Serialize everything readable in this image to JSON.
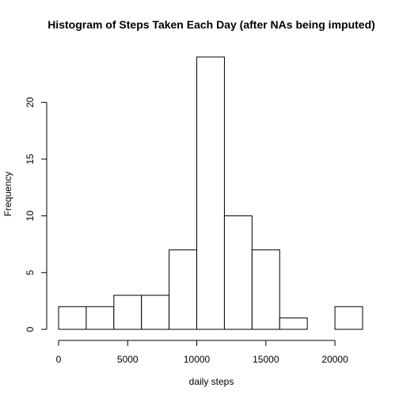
{
  "chart_data": {
    "type": "bar",
    "title": "Histogram of Steps Taken Each Day (after NAs being imputed)",
    "xlabel": "daily steps",
    "ylabel": "Frequency",
    "bins": [
      {
        "from": 0,
        "to": 2000,
        "count": 2
      },
      {
        "from": 2000,
        "to": 4000,
        "count": 2
      },
      {
        "from": 4000,
        "to": 6000,
        "count": 3
      },
      {
        "from": 6000,
        "to": 8000,
        "count": 3
      },
      {
        "from": 8000,
        "to": 10000,
        "count": 7
      },
      {
        "from": 10000,
        "to": 12000,
        "count": 24
      },
      {
        "from": 12000,
        "to": 14000,
        "count": 10
      },
      {
        "from": 14000,
        "to": 16000,
        "count": 7
      },
      {
        "from": 16000,
        "to": 18000,
        "count": 1
      },
      {
        "from": 18000,
        "to": 20000,
        "count": 0
      },
      {
        "from": 20000,
        "to": 22000,
        "count": 2
      }
    ],
    "xlim": [
      0,
      22000
    ],
    "ylim": [
      0,
      24
    ],
    "x_ticks": [
      0,
      5000,
      10000,
      15000,
      20000
    ],
    "y_ticks": [
      0,
      5,
      10,
      15,
      20
    ],
    "grid": false,
    "legend": "none"
  }
}
